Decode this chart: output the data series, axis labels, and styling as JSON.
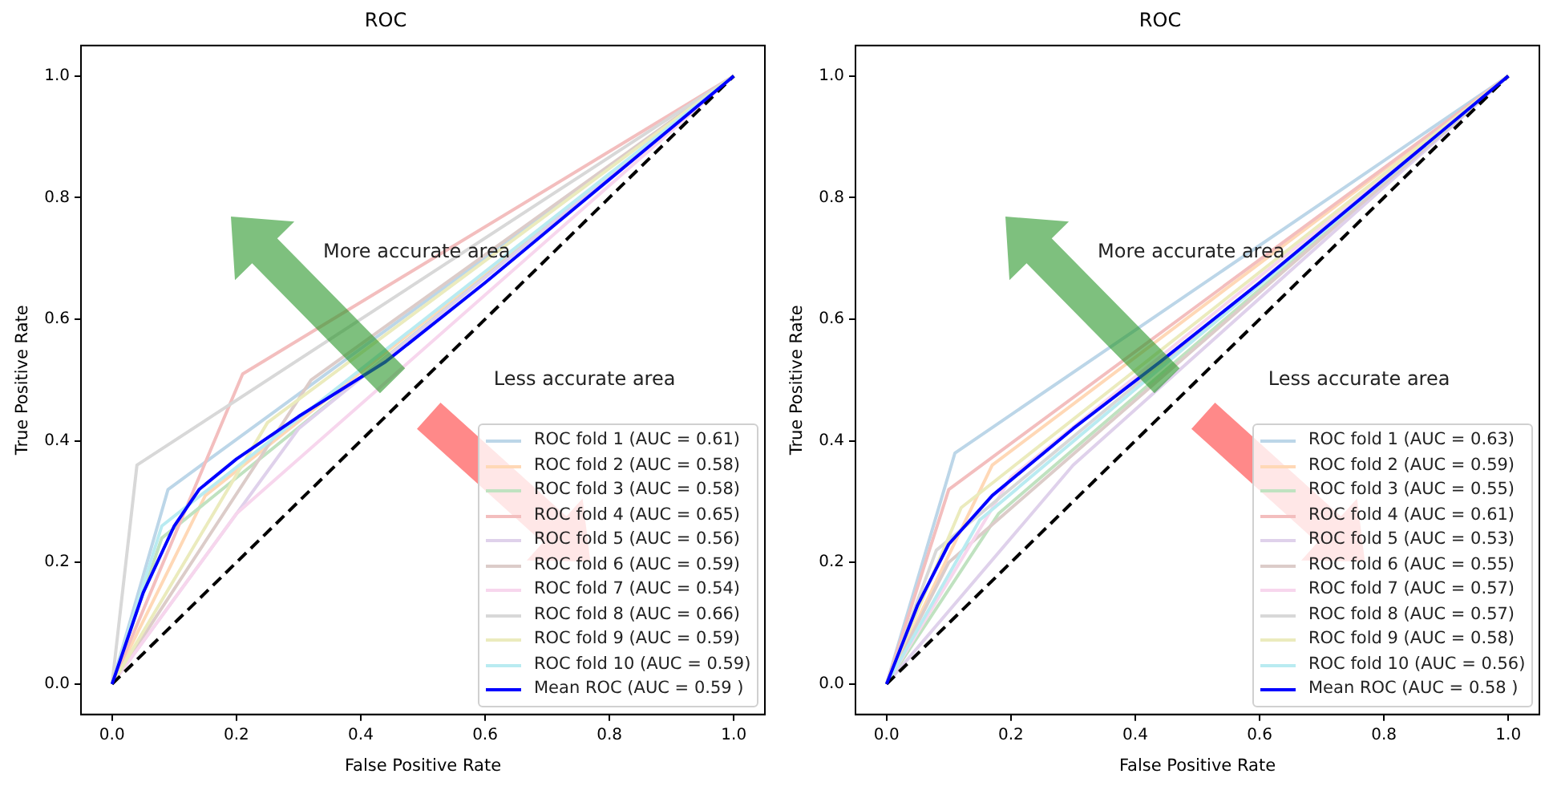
{
  "chart_data": [
    {
      "type": "line",
      "title": "ROC",
      "xlabel": "False Positive Rate",
      "ylabel": "True Positive Rate",
      "xlim": [
        -0.05,
        1.05
      ],
      "ylim": [
        -0.05,
        1.05
      ],
      "xticks": [
        {
          "value": 0,
          "label": "0.0"
        },
        {
          "value": 0.2,
          "label": "0.2"
        },
        {
          "value": 0.4,
          "label": "0.4"
        },
        {
          "value": 0.6,
          "label": "0.6"
        },
        {
          "value": 0.8,
          "label": "0.8"
        },
        {
          "value": 1,
          "label": "1.0"
        }
      ],
      "yticks": [
        {
          "value": 0,
          "label": "0.0"
        },
        {
          "value": 0.2,
          "label": "0.2"
        },
        {
          "value": 0.4,
          "label": "0.4"
        },
        {
          "value": 0.6,
          "label": "0.6"
        },
        {
          "value": 0.8,
          "label": "0.8"
        },
        {
          "value": 1,
          "label": "1.0"
        }
      ],
      "grid": false,
      "legend": "bottom right",
      "marker": "none",
      "line_style": "solid",
      "annotations": [
        "More accurate area",
        "Less accurate area"
      ],
      "series": [
        {
          "name": "ROC fold 1 (AUC = 0.61)",
          "color": "#bcd6e8",
          "x": [
            0,
            0.09,
            1
          ],
          "values": [
            0,
            0.32,
            1
          ]
        },
        {
          "name": "ROC fold 2 (AUC = 0.58)",
          "color": "#ffd8b6",
          "x": [
            0,
            0.15,
            1
          ],
          "values": [
            0,
            0.31,
            1
          ]
        },
        {
          "name": "ROC fold 3 (AUC = 0.58)",
          "color": "#c0e2c0",
          "x": [
            0,
            0.08,
            1
          ],
          "values": [
            0,
            0.24,
            1
          ]
        },
        {
          "name": "ROC fold 4 (AUC = 0.65)",
          "color": "#f3bebe",
          "x": [
            0,
            0.21,
            1
          ],
          "values": [
            0,
            0.51,
            1
          ]
        },
        {
          "name": "ROC fold 5 (AUC = 0.56)",
          "color": "#dfd1eb",
          "x": [
            0,
            0.3,
            1
          ],
          "values": [
            0,
            0.42,
            1
          ]
        },
        {
          "name": "ROC fold 6 (AUC = 0.59)",
          "color": "#dcccc9",
          "x": [
            0,
            0.32,
            1
          ],
          "values": [
            0,
            0.5,
            1
          ]
        },
        {
          "name": "ROC fold 7 (AUC = 0.54)",
          "color": "#f7d6ed",
          "x": [
            0,
            0.2,
            1
          ],
          "values": [
            0,
            0.28,
            1
          ]
        },
        {
          "name": "ROC fold 8 (AUC = 0.66)",
          "color": "#d8d8d8",
          "x": [
            0,
            0.04,
            1
          ],
          "values": [
            0,
            0.36,
            1
          ]
        },
        {
          "name": "ROC fold 9 (AUC = 0.59)",
          "color": "#ebebbd",
          "x": [
            0,
            0.25,
            1
          ],
          "values": [
            0,
            0.43,
            1
          ]
        },
        {
          "name": "ROC fold 10 (AUC = 0.59)",
          "color": "#b9ebf1",
          "x": [
            0,
            0.08,
            1
          ],
          "values": [
            0,
            0.26,
            1
          ]
        },
        {
          "color": "#000000",
          "line_style": "dashed",
          "x": [
            0,
            1
          ],
          "values": [
            0,
            1
          ]
        },
        {
          "name": "Mean ROC (AUC = 0.59 )",
          "color": "#0000ff",
          "x": [
            0,
            0.05,
            0.1,
            0.14,
            0.2,
            0.3,
            0.44,
            0.6,
            0.8,
            1
          ],
          "values": [
            0,
            0.15,
            0.26,
            0.32,
            0.37,
            0.44,
            0.53,
            0.66,
            0.83,
            1
          ]
        }
      ]
    },
    {
      "type": "line",
      "title": "ROC",
      "xlabel": "False Positive Rate",
      "ylabel": "True Positive Rate",
      "xlim": [
        -0.05,
        1.05
      ],
      "ylim": [
        -0.05,
        1.05
      ],
      "xticks": [
        {
          "value": 0,
          "label": "0.0"
        },
        {
          "value": 0.2,
          "label": "0.2"
        },
        {
          "value": 0.4,
          "label": "0.4"
        },
        {
          "value": 0.6,
          "label": "0.6"
        },
        {
          "value": 0.8,
          "label": "0.8"
        },
        {
          "value": 1,
          "label": "1.0"
        }
      ],
      "yticks": [
        {
          "value": 0,
          "label": "0.0"
        },
        {
          "value": 0.2,
          "label": "0.2"
        },
        {
          "value": 0.4,
          "label": "0.4"
        },
        {
          "value": 0.6,
          "label": "0.6"
        },
        {
          "value": 0.8,
          "label": "0.8"
        },
        {
          "value": 1,
          "label": "1.0"
        }
      ],
      "grid": false,
      "legend": "bottom right",
      "marker": "none",
      "line_style": "solid",
      "annotations": [
        "More accurate area",
        "Less accurate area"
      ],
      "series": [
        {
          "name": "ROC fold 1 (AUC = 0.63)",
          "color": "#bcd6e8",
          "x": [
            0,
            0.11,
            1
          ],
          "values": [
            0,
            0.38,
            1
          ]
        },
        {
          "name": "ROC fold 2 (AUC = 0.59)",
          "color": "#ffd8b6",
          "x": [
            0,
            0.17,
            1
          ],
          "values": [
            0,
            0.36,
            1
          ]
        },
        {
          "name": "ROC fold 3 (AUC = 0.55)",
          "color": "#c0e2c0",
          "x": [
            0,
            0.18,
            1
          ],
          "values": [
            0,
            0.28,
            1
          ]
        },
        {
          "name": "ROC fold 4 (AUC = 0.61)",
          "color": "#f3bebe",
          "x": [
            0,
            0.1,
            1
          ],
          "values": [
            0,
            0.32,
            1
          ]
        },
        {
          "name": "ROC fold 5 (AUC = 0.53)",
          "color": "#dfd1eb",
          "x": [
            0,
            0.3,
            1
          ],
          "values": [
            0,
            0.36,
            1
          ]
        },
        {
          "name": "ROC fold 6 (AUC = 0.55)",
          "color": "#dcccc9",
          "x": [
            0,
            0.1,
            1
          ],
          "values": [
            0,
            0.2,
            1
          ]
        },
        {
          "name": "ROC fold 7 (AUC = 0.57)",
          "color": "#f7d6ed",
          "x": [
            0,
            0.2,
            1
          ],
          "values": [
            0,
            0.34,
            1
          ]
        },
        {
          "name": "ROC fold 8 (AUC = 0.57)",
          "color": "#d8d8d8",
          "x": [
            0,
            0.08,
            1
          ],
          "values": [
            0,
            0.22,
            1
          ]
        },
        {
          "name": "ROC fold 9 (AUC = 0.58)",
          "color": "#ebebbd",
          "x": [
            0,
            0.12,
            1
          ],
          "values": [
            0,
            0.29,
            1
          ]
        },
        {
          "name": "ROC fold 10 (AUC = 0.56)",
          "color": "#b9ebf1",
          "x": [
            0,
            0.15,
            1
          ],
          "values": [
            0,
            0.27,
            1
          ]
        },
        {
          "color": "#000000",
          "line_style": "dashed",
          "x": [
            0,
            1
          ],
          "values": [
            0,
            1
          ]
        },
        {
          "name": "Mean ROC (AUC = 0.58 )",
          "color": "#0000ff",
          "x": [
            0,
            0.05,
            0.1,
            0.17,
            0.3,
            0.44,
            0.6,
            0.8,
            1
          ],
          "values": [
            0,
            0.13,
            0.23,
            0.31,
            0.42,
            0.53,
            0.66,
            0.83,
            1
          ]
        }
      ]
    }
  ]
}
